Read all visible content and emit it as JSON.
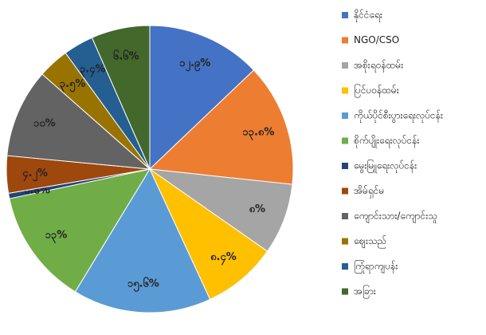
{
  "chart_data": {
    "type": "pie",
    "categories": [
      "နိုင်ငံရေး",
      "NGO/CSO",
      "အစိုးရဝန်ထမ်း",
      "ပြင်ပဝန်ထမ်း",
      "ကိုယ်ပိုင်စီးပွားရေးလုပ်ငန်း",
      "စိုက်ပျိုးရေးလုပ်ငန်း",
      "မွေးမြူရေးလုပ်ငန်း",
      "အိမ်ရှင်မ",
      "ကျောင်းသား/ကျောင်းသူ",
      "ဈေးသည်",
      "ကြုံရာကျပန်း",
      "အခြား"
    ],
    "values": [
      12.9,
      13.8,
      8,
      8.4,
      15.6,
      13,
      0.6,
      4.2,
      10,
      3.5,
      3.4,
      6.6
    ],
    "value_labels": [
      "၁၂.၉%",
      "၁၃.၈%",
      "၈%",
      "၈.၄%",
      "၁၅.၆%",
      "၁၃%",
      "၀.၆%",
      "၄.၂%",
      "၁၀%",
      "၃.၅%",
      "၃.၄%",
      "၆.၆%"
    ],
    "colors": [
      "#4472c4",
      "#ed7d31",
      "#a5a5a5",
      "#ffc000",
      "#5b9bd5",
      "#70ad47",
      "#264478",
      "#9e480e",
      "#636363",
      "#997300",
      "#255e91",
      "#43682b"
    ],
    "legend": "right"
  }
}
